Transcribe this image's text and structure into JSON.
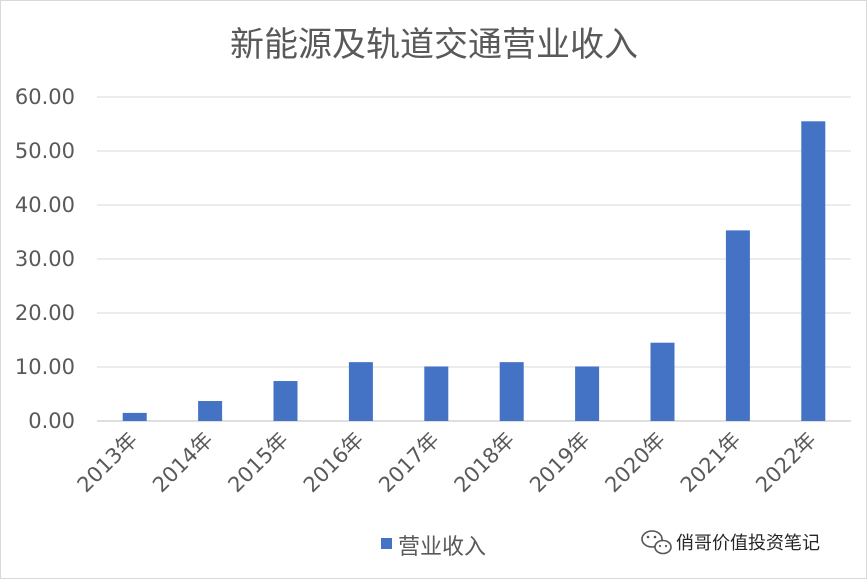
{
  "chart_data": {
    "type": "bar",
    "title": "新能源及轨道交通营业收入",
    "categories": [
      "2013年",
      "2014年",
      "2015年",
      "2016年",
      "2017年",
      "2018年",
      "2019年",
      "2020年",
      "2021年",
      "2022年"
    ],
    "series": [
      {
        "name": "营业收入",
        "values": [
          1.5,
          3.7,
          7.4,
          10.9,
          10.1,
          10.9,
          10.1,
          14.5,
          35.3,
          55.5
        ],
        "color": "#4472c4"
      }
    ],
    "y_ticks": [
      "0.00",
      "10.00",
      "20.00",
      "30.00",
      "40.00",
      "50.00",
      "60.00"
    ],
    "ylim": [
      0,
      60
    ],
    "grid": true,
    "legend_position": "bottom"
  },
  "watermark": {
    "text": "俏哥价值投资笔记",
    "icon": "wechat-icon"
  }
}
